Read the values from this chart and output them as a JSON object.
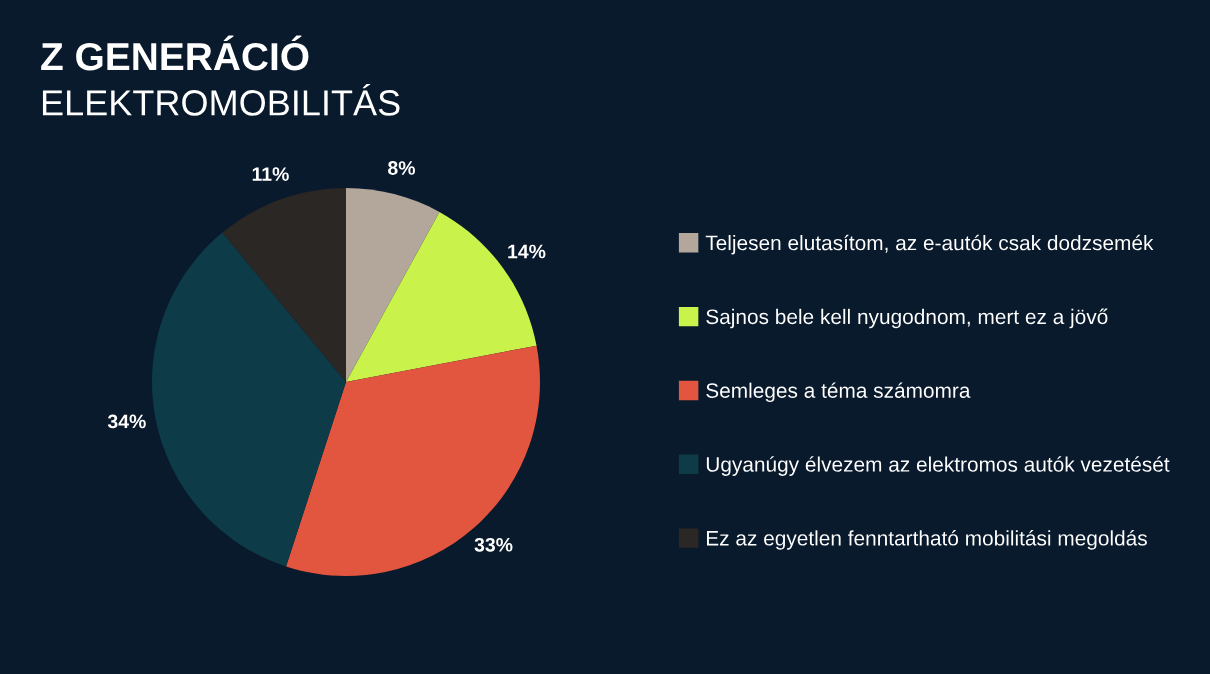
{
  "chart_data": {
    "type": "pie",
    "title": "Z GENERÁCIÓ",
    "subtitle": "ELEKTROMOBILITÁS",
    "categories": [
      "Teljesen elutasítom, az e-autók csak dodzsemék",
      "Sajnos bele kell nyugodnom, mert ez a jövő",
      "Semleges a téma számomra",
      "Ugyanúgy élvezem az elektromos autók vezetését",
      "Ez az egyetlen fenntartható mobilitási megoldás"
    ],
    "values": [
      8,
      14,
      33,
      34,
      11
    ],
    "value_labels": [
      "8%",
      "14%",
      "33%",
      "34%",
      "11%"
    ],
    "colors": [
      "#b3a79c",
      "#c9f24b",
      "#e2553f",
      "#0d3b48",
      "#2b2724"
    ],
    "legend": "right"
  }
}
